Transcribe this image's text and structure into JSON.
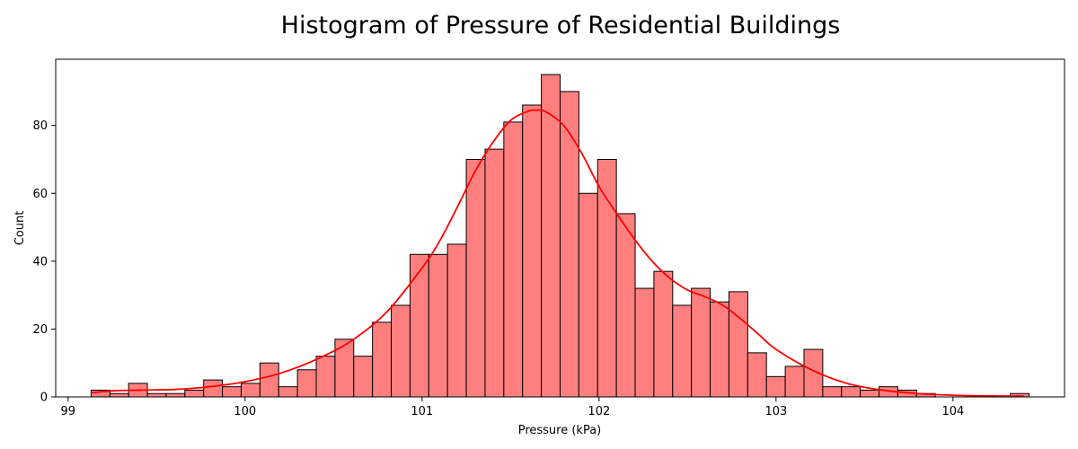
{
  "chart_data": {
    "type": "bar",
    "title": "Histogram of Pressure of Residential Buildings",
    "xlabel": "Pressure (kPa)",
    "ylabel": "Count",
    "xlim": [
      98.93,
      104.63
    ],
    "ylim": [
      0,
      99.5
    ],
    "xticks": [
      99,
      100,
      101,
      102,
      103,
      104
    ],
    "yticks": [
      0,
      20,
      40,
      60,
      80
    ],
    "bin_start": 99.13,
    "bin_width": 0.106,
    "counts": [
      2,
      1,
      4,
      1,
      1,
      2,
      5,
      3,
      4,
      10,
      3,
      8,
      12,
      17,
      12,
      22,
      27,
      42,
      42,
      45,
      70,
      73,
      81,
      86,
      95,
      90,
      60,
      70,
      54,
      32,
      37,
      27,
      32,
      28,
      31,
      13,
      6,
      9,
      14,
      3,
      3,
      2,
      3,
      2,
      1,
      0,
      0,
      0,
      0,
      1
    ],
    "bar_color": "#ff7f7f",
    "bar_edge_color": "#000000",
    "kde": {
      "color": "#ff0000",
      "x": [
        99.13,
        99.25,
        99.4,
        99.6,
        99.8,
        100.0,
        100.2,
        100.4,
        100.6,
        100.8,
        101.0,
        101.1,
        101.2,
        101.3,
        101.4,
        101.5,
        101.6,
        101.65,
        101.7,
        101.8,
        101.9,
        102.0,
        102.1,
        102.2,
        102.3,
        102.4,
        102.5,
        102.6,
        102.7,
        102.8,
        102.9,
        103.0,
        103.2,
        103.4,
        103.6,
        103.8,
        104.0,
        104.2,
        104.4
      ],
      "y": [
        1.2,
        1.8,
        2.0,
        2.2,
        3.0,
        4.5,
        7.0,
        11.0,
        16.5,
        25.0,
        38.0,
        46.0,
        56.0,
        66.5,
        75.0,
        81.5,
        84.2,
        84.5,
        84.0,
        80.0,
        72.0,
        62.0,
        54.0,
        46.5,
        40.0,
        35.0,
        31.5,
        29.5,
        27.0,
        23.0,
        18.5,
        14.0,
        8.0,
        4.0,
        2.0,
        1.0,
        0.5,
        0.3,
        0.2
      ]
    }
  }
}
